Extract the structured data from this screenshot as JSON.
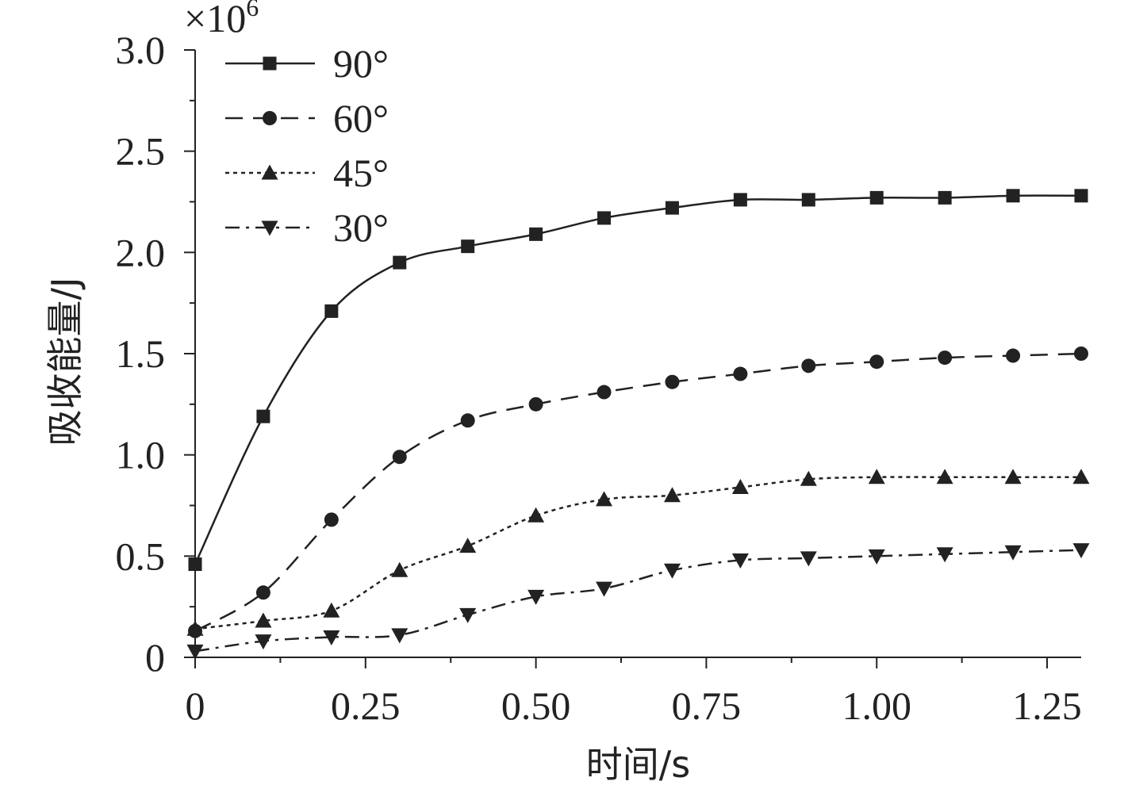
{
  "chart_data": {
    "type": "line",
    "xlabel": "时间/s",
    "ylabel": "吸收能量/J",
    "y_multiplier_base": "×10",
    "y_multiplier_exp": "6",
    "xlim": [
      0,
      1.3
    ],
    "ylim": [
      0,
      3.0
    ],
    "x_ticks": [
      0,
      0.25,
      0.5,
      0.75,
      1.0,
      1.25
    ],
    "x_tick_labels": [
      "0",
      "0.25",
      "0.50",
      "0.75",
      "1.00",
      "1.25"
    ],
    "y_ticks": [
      0,
      0.5,
      1.0,
      1.5,
      2.0,
      2.5,
      3.0
    ],
    "y_tick_labels": [
      "0",
      "0.5",
      "1.0",
      "1.5",
      "2.0",
      "2.5",
      "3.0"
    ],
    "grid": false,
    "legend_position": "top-left",
    "x": [
      0,
      0.1,
      0.2,
      0.3,
      0.4,
      0.5,
      0.6,
      0.7,
      0.8,
      0.9,
      1.0,
      1.1,
      1.2,
      1.3
    ],
    "series": [
      {
        "name": "90°",
        "marker": "square",
        "line_style": "solid",
        "values": [
          0.46,
          1.19,
          1.71,
          1.95,
          2.03,
          2.09,
          2.17,
          2.22,
          2.26,
          2.26,
          2.27,
          2.27,
          2.28,
          2.28
        ]
      },
      {
        "name": "60°",
        "marker": "circle",
        "line_style": "dashed",
        "values": [
          0.13,
          0.32,
          0.68,
          0.99,
          1.17,
          1.25,
          1.31,
          1.36,
          1.4,
          1.44,
          1.46,
          1.48,
          1.49,
          1.5
        ]
      },
      {
        "name": "45°",
        "marker": "triangle-up",
        "line_style": "dotted",
        "values": [
          0.14,
          0.18,
          0.23,
          0.43,
          0.55,
          0.7,
          0.78,
          0.8,
          0.84,
          0.88,
          0.89,
          0.89,
          0.89,
          0.89
        ]
      },
      {
        "name": "30°",
        "marker": "triangle-down",
        "line_style": "dash-dot",
        "values": [
          0.03,
          0.08,
          0.1,
          0.11,
          0.21,
          0.3,
          0.34,
          0.43,
          0.48,
          0.49,
          0.5,
          0.51,
          0.52,
          0.53
        ]
      }
    ],
    "colors": {
      "line": "#222222",
      "axis": "#222222"
    }
  }
}
